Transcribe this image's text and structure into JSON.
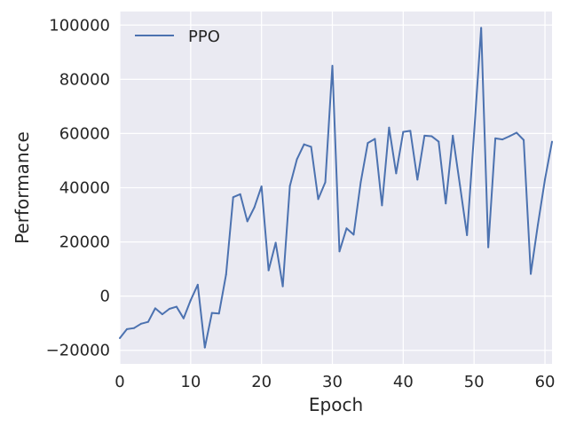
{
  "chart_data": {
    "type": "line",
    "title": "",
    "xlabel": "Epoch",
    "ylabel": "Performance",
    "xlim": [
      0,
      61
    ],
    "ylim": [
      -25000,
      105000
    ],
    "xticks": [
      0,
      10,
      20,
      30,
      40,
      50,
      60
    ],
    "xtick_labels": [
      "0",
      "10",
      "20",
      "30",
      "40",
      "50",
      "60"
    ],
    "yticks": [
      -20000,
      0,
      20000,
      40000,
      60000,
      80000,
      100000
    ],
    "ytick_labels": [
      "−20000",
      "0",
      "20000",
      "40000",
      "60000",
      "80000",
      "100000"
    ],
    "grid": true,
    "legend_position": "top-left",
    "series": [
      {
        "name": "PPO",
        "color": "#4c72b0",
        "x": [
          0,
          1,
          2,
          3,
          4,
          5,
          6,
          7,
          8,
          9,
          10,
          11,
          12,
          13,
          14,
          15,
          16,
          17,
          18,
          19,
          20,
          21,
          22,
          23,
          24,
          25,
          26,
          27,
          28,
          29,
          30,
          31,
          32,
          33,
          34,
          35,
          36,
          37,
          38,
          39,
          40,
          41,
          42,
          43,
          44,
          45,
          46,
          47,
          48,
          49,
          50,
          51,
          52,
          53,
          54,
          55,
          56,
          57,
          58,
          59,
          60,
          61
        ],
        "values": [
          -15500,
          -12200,
          -11800,
          -10200,
          -9500,
          -4500,
          -6700,
          -4700,
          -3900,
          -8200,
          -1500,
          4200,
          -19000,
          -6200,
          -6400,
          8000,
          36500,
          37600,
          27600,
          32800,
          40500,
          9500,
          19700,
          3600,
          40600,
          50500,
          56000,
          55100,
          35800,
          42000,
          85000,
          16500,
          25000,
          22700,
          42000,
          56500,
          58000,
          33500,
          62200,
          45300,
          60600,
          61000,
          43000,
          59200,
          59000,
          57000,
          34200,
          59200,
          41000,
          22500,
          60000,
          99000,
          18000,
          58200,
          57800,
          59000,
          60300,
          57600,
          8200,
          26300,
          43000,
          57000
        ]
      }
    ]
  }
}
